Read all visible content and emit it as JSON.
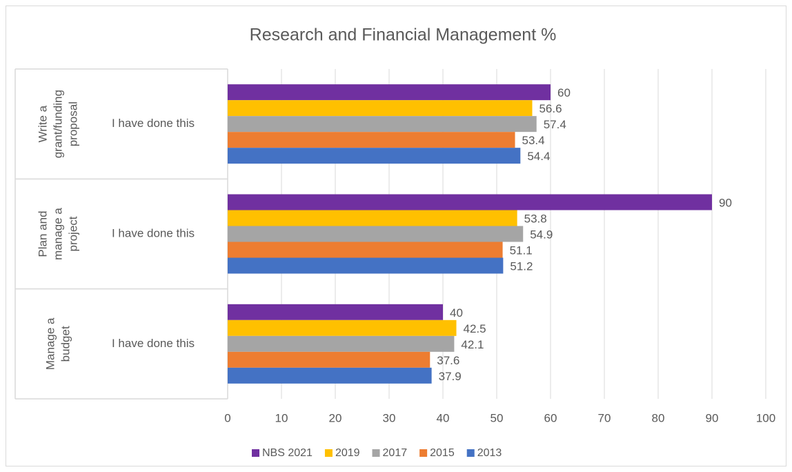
{
  "chart_data": {
    "type": "bar",
    "orientation": "horizontal",
    "title": "Research and Financial Management %",
    "group_labels": [
      [
        "Write a",
        "grant/funding",
        "proposal"
      ],
      [
        "Plan and",
        "manage a",
        "project"
      ],
      [
        "Manage a",
        "budget"
      ]
    ],
    "categories": [
      "I have done this",
      "I have done this",
      "I have done this"
    ],
    "series": [
      {
        "name": "NBS 2021",
        "color": "#7030a0",
        "values": [
          60,
          90,
          40
        ]
      },
      {
        "name": "2019",
        "color": "#ffc000",
        "values": [
          56.6,
          53.8,
          42.5
        ]
      },
      {
        "name": "2017",
        "color": "#a5a5a5",
        "values": [
          57.4,
          54.9,
          42.1
        ]
      },
      {
        "name": "2015",
        "color": "#ed7d31",
        "values": [
          53.4,
          51.1,
          37.6
        ]
      },
      {
        "name": "2013",
        "color": "#4472c4",
        "values": [
          54.4,
          51.2,
          37.9
        ]
      }
    ],
    "xlim": [
      0,
      100
    ],
    "xticks": [
      0,
      10,
      20,
      30,
      40,
      50,
      60,
      70,
      80,
      90,
      100
    ],
    "grid": true,
    "legend": "bottom"
  }
}
